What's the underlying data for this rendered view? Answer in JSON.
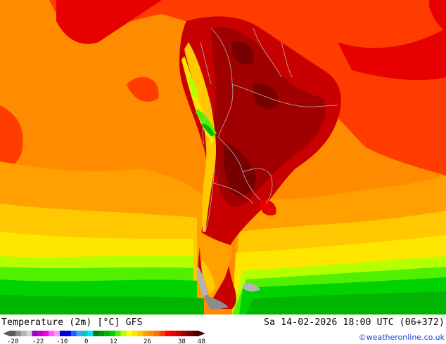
{
  "map": {
    "title": "Temperature (2m) [°C] GFS",
    "datetime": "Sa 14-02-2026 18:00 UTC (06+372)",
    "credit": "©weatheronline.co.uk",
    "region": "South America",
    "legend": {
      "unit": "°C",
      "tick_labels": [
        "-28",
        "-22",
        "-10",
        "0",
        "12",
        "26",
        "38",
        "48"
      ],
      "colors": [
        "#5a5a5a",
        "#8c8c8c",
        "#b4b4b4",
        "#d2d2d2",
        "#9b00c8",
        "#c800c8",
        "#f000f0",
        "#ff5aff",
        "#ff96ff",
        "#0000c8",
        "#0000ff",
        "#1e64ff",
        "#46a0ff",
        "#00c8c8",
        "#00e6ff",
        "#00781e",
        "#009600",
        "#00b400",
        "#00d200",
        "#50f000",
        "#b4ff00",
        "#ffff00",
        "#ffe600",
        "#ffc800",
        "#ffa000",
        "#ff8c00",
        "#ff6e00",
        "#ff3c00",
        "#ff0000",
        "#e60000",
        "#c80000",
        "#a00000",
        "#780000",
        "#500000"
      ]
    }
  }
}
